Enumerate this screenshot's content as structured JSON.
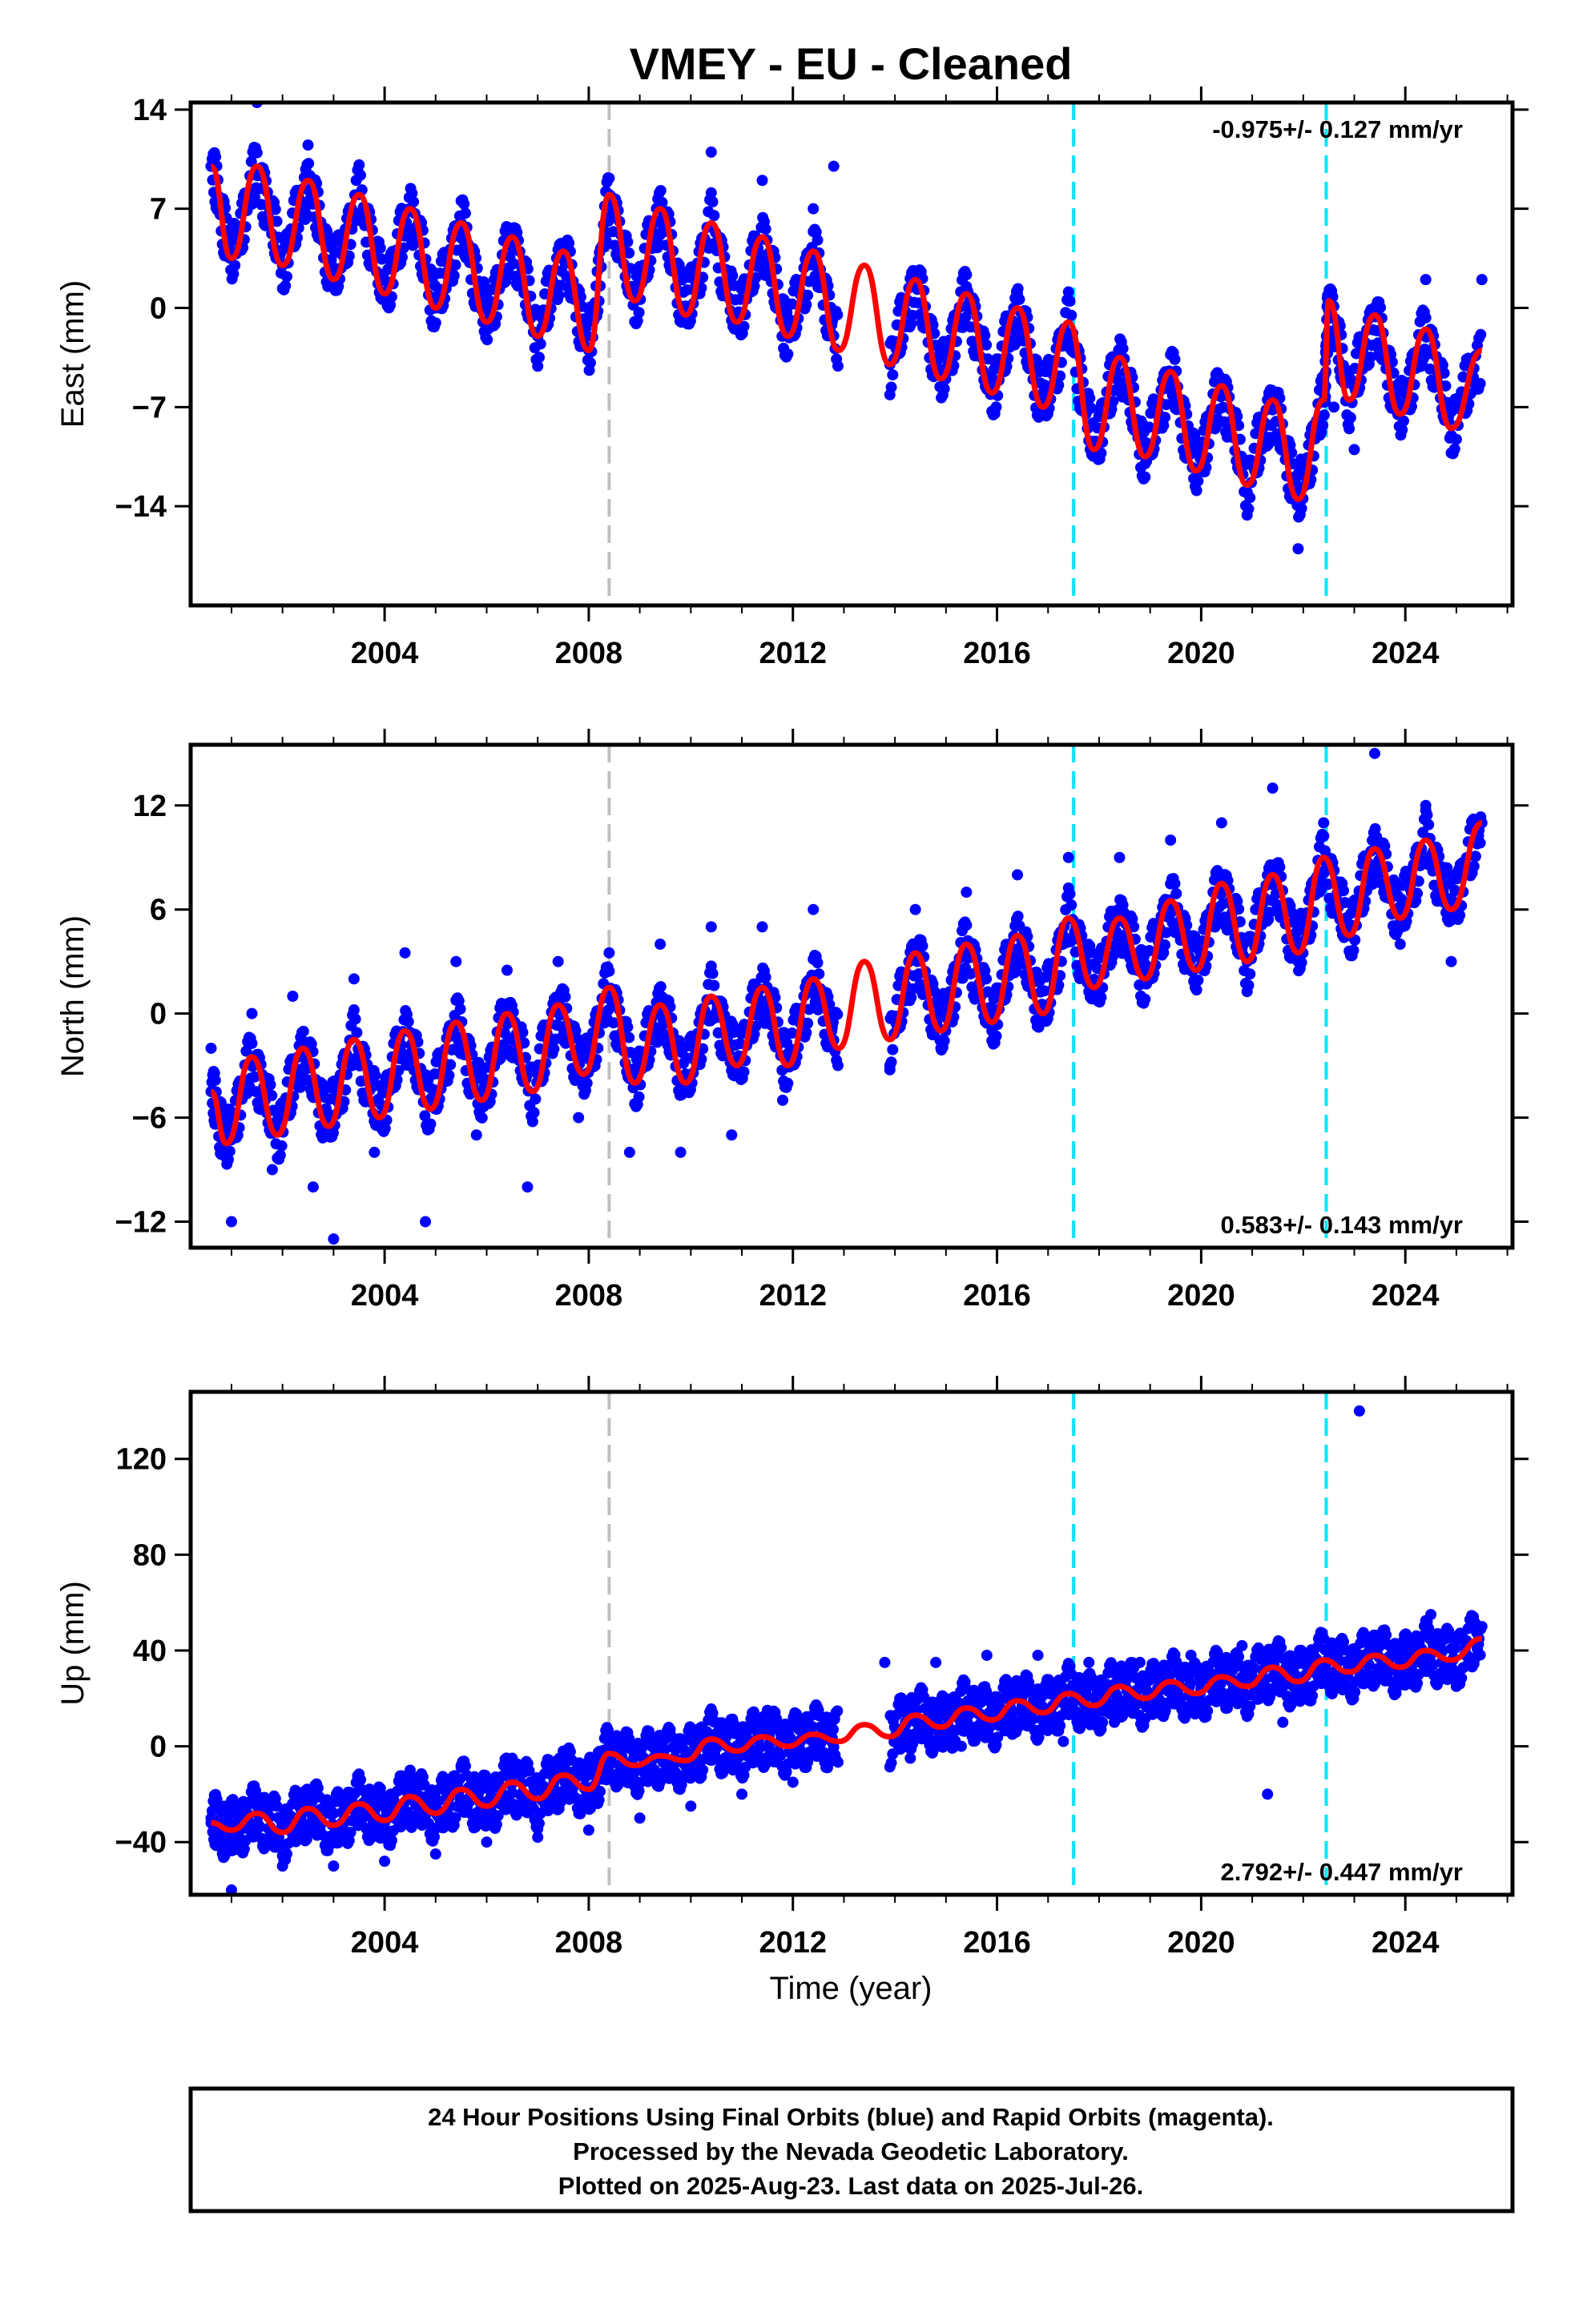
{
  "chart_data": {
    "title": "VMEY  - EU - Cleaned",
    "xlabel": "Time (year)",
    "x_range": [
      2000.2,
      2026.1
    ],
    "x_ticks": [
      2004,
      2008,
      2012,
      2016,
      2020,
      2024
    ],
    "vertical_lines": [
      {
        "x": 2008.4,
        "color": "#c0c0c0"
      },
      {
        "x": 2017.5,
        "color": "#00e5ff"
      },
      {
        "x": 2022.45,
        "color": "#00e5ff"
      }
    ],
    "colors": {
      "points": "#0000ff",
      "model": "#ff0000",
      "frame": "#000000"
    },
    "panels": [
      {
        "type": "scatter",
        "component": "east",
        "ylabel": "East (mm)",
        "ylim": [
          -21,
          14.5
        ],
        "yticks": [
          14,
          7,
          0,
          -7,
          -14
        ],
        "rate_label": "-0.975+/- 0.127 mm/yr",
        "rate_position": "top-right",
        "series": [
          {
            "name": "points",
            "x": [
              2000.6,
              2001.0,
              2001.5,
              2002.0,
              2002.5,
              2003.0,
              2003.5,
              2004.0,
              2004.5,
              2005.0,
              2005.5,
              2006.0,
              2006.5,
              2007.0,
              2007.5,
              2008.0,
              2008.4,
              2008.9,
              2009.4,
              2009.9,
              2010.4,
              2010.9,
              2011.4,
              2011.9,
              2012.4,
              2012.8,
              2013.9,
              2014.4,
              2014.9,
              2015.4,
              2015.9,
              2016.4,
              2016.9,
              2017.4,
              2017.9,
              2018.4,
              2018.9,
              2019.4,
              2019.9,
              2020.4,
              2020.9,
              2021.4,
              2021.9,
              2022.2,
              2022.6,
              2023.0,
              2023.4,
              2023.9,
              2024.4,
              2024.9,
              2025.5
            ],
            "y": [
              10,
              4,
              14.5,
              3,
              11.5,
              2.5,
              8,
              1,
              7,
              0,
              6,
              -1,
              5,
              -2,
              4,
              -3,
              8,
              1,
              7,
              -0.5,
              11,
              -1.5,
              9,
              -2,
              7,
              10,
              -4,
              2,
              -3.5,
              1.5,
              -5,
              1,
              -6,
              0.5,
              -10,
              -3,
              -11,
              -5,
              -12,
              -5,
              -13,
              -7,
              -17,
              -9,
              -7,
              -10,
              0,
              -7,
              2,
              -9,
              2
            ]
          },
          {
            "name": "model",
            "x": [
              2000.6,
              2001.0,
              2001.5,
              2002.0,
              2002.5,
              2003.0,
              2003.5,
              2004.0,
              2004.5,
              2005.0,
              2005.5,
              2006.0,
              2006.5,
              2007.0,
              2007.5,
              2008.0,
              2008.4,
              2008.9,
              2009.4,
              2009.9,
              2010.4,
              2010.9,
              2011.4,
              2011.9,
              2012.4,
              2012.9,
              2013.4,
              2013.9,
              2014.4,
              2014.9,
              2015.4,
              2015.9,
              2016.4,
              2016.9,
              2017.4,
              2017.9,
              2018.4,
              2018.9,
              2019.4,
              2019.9,
              2020.4,
              2020.9,
              2021.4,
              2021.9,
              2022.4,
              2022.5,
              2022.9,
              2023.4,
              2023.9,
              2024.4,
              2024.9,
              2025.5
            ],
            "y": [
              10,
              3.5,
              10,
              3,
              9,
              2,
              8,
              1,
              7,
              0,
              6,
              -1,
              5,
              -2,
              4,
              -3,
              8,
              0.5,
              7,
              -0.5,
              6,
              -1,
              5,
              -2,
              4,
              -3,
              3,
              -4,
              2,
              -5,
              1,
              -6,
              0,
              -7,
              -1,
              -10,
              -3.5,
              -10.5,
              -4.5,
              -11.5,
              -5.5,
              -12.5,
              -6.5,
              -13.5,
              -6.5,
              0.5,
              -6.5,
              -0.5,
              -7.5,
              -1.5,
              -8.5,
              -3
            ]
          }
        ]
      },
      {
        "type": "scatter",
        "component": "north",
        "ylabel": "North (mm)",
        "ylim": [
          -13.5,
          15.5
        ],
        "yticks": [
          12,
          6,
          0,
          -6,
          -12
        ],
        "rate_label": "0.583+/- 0.143 mm/yr",
        "rate_position": "bottom-right",
        "series": [
          {
            "name": "points",
            "x": [
              2000.6,
              2001.0,
              2001.4,
              2001.8,
              2002.2,
              2002.6,
              2003.0,
              2003.4,
              2003.8,
              2004.4,
              2004.8,
              2005.4,
              2005.8,
              2006.4,
              2006.8,
              2007.4,
              2007.8,
              2008.4,
              2008.8,
              2009.4,
              2009.8,
              2010.4,
              2010.8,
              2011.4,
              2011.8,
              2012.4,
              2013.9,
              2014.4,
              2014.9,
              2015.4,
              2015.9,
              2016.4,
              2016.9,
              2017.4,
              2017.9,
              2018.4,
              2018.9,
              2019.4,
              2019.9,
              2020.4,
              2020.9,
              2021.4,
              2021.9,
              2022.4,
              2022.9,
              2023.4,
              2023.9,
              2024.4,
              2024.9,
              2025.5
            ],
            "y": [
              -2,
              -12,
              0,
              -9,
              1,
              -10,
              -13,
              2,
              -8,
              3.5,
              -12,
              3,
              -7,
              2.5,
              -10,
              3,
              -6,
              3.5,
              -8,
              4,
              -8,
              5,
              -7,
              5,
              -5,
              6,
              -3,
              6,
              -2,
              7,
              -1,
              8,
              0,
              9,
              1,
              9,
              2,
              10,
              4,
              11,
              3,
              13,
              3,
              11,
              5,
              15,
              4,
              12,
              3,
              11
            ]
          },
          {
            "name": "model",
            "x": [
              2000.6,
              2000.9,
              2001.4,
              2001.9,
              2002.4,
              2002.9,
              2003.4,
              2003.9,
              2004.4,
              2004.9,
              2005.4,
              2005.9,
              2006.4,
              2006.9,
              2007.4,
              2007.9,
              2008.4,
              2008.9,
              2009.4,
              2009.9,
              2010.4,
              2010.9,
              2011.4,
              2011.9,
              2012.4,
              2012.9,
              2013.4,
              2013.9,
              2014.4,
              2014.9,
              2015.4,
              2015.9,
              2016.4,
              2016.9,
              2017.4,
              2017.9,
              2018.4,
              2018.9,
              2019.4,
              2019.9,
              2020.4,
              2020.9,
              2021.4,
              2021.9,
              2022.4,
              2022.9,
              2023.4,
              2023.9,
              2024.4,
              2024.9,
              2025.5
            ],
            "y": [
              -4.5,
              -7.5,
              -2.5,
              -7,
              -2,
              -6.5,
              -1.5,
              -6,
              -1,
              -5.5,
              -0.5,
              -5,
              0,
              -4.5,
              0.5,
              -3.5,
              1.5,
              -4,
              0.5,
              -4,
              1,
              -3,
              1.5,
              -3,
              2,
              -2,
              3,
              -1.5,
              3.5,
              -1,
              4,
              -0.5,
              4.5,
              0,
              5.5,
              1.5,
              5.5,
              2,
              6.5,
              2.5,
              7.5,
              3,
              8,
              3.5,
              9,
              4.5,
              9.5,
              5.5,
              10,
              6,
              11
            ]
          }
        ]
      },
      {
        "type": "scatter",
        "component": "up",
        "ylabel": "Up (mm)",
        "ylim": [
          -62,
          148
        ],
        "yticks": [
          120,
          80,
          40,
          0,
          -40
        ],
        "rate_label": "2.792+/- 0.447 mm/yr",
        "rate_position": "bottom-right",
        "series": [
          {
            "name": "points",
            "x": [
              2000.6,
              2001.0,
              2001.5,
              2002.0,
              2002.5,
              2003.0,
              2003.5,
              2004.0,
              2004.5,
              2005.0,
              2005.5,
              2006.0,
              2006.5,
              2007.0,
              2007.5,
              2008.0,
              2008.4,
              2009.0,
              2009.5,
              2010.0,
              2010.5,
              2011.0,
              2011.5,
              2012.0,
              2012.5,
              2013.8,
              2014.3,
              2014.8,
              2015.3,
              2015.8,
              2016.3,
              2016.8,
              2017.3,
              2017.8,
              2018.3,
              2018.8,
              2019.3,
              2019.8,
              2020.3,
              2020.8,
              2021.3,
              2021.6,
              2022.3,
              2022.8,
              2023.1,
              2023.5,
              2024.0,
              2024.5,
              2025.0,
              2025.5
            ],
            "y": [
              -30,
              -60,
              -25,
              -50,
              -20,
              -50,
              -15,
              -48,
              -10,
              -45,
              -8,
              -40,
              -5,
              -38,
              -2,
              -35,
              0,
              -30,
              5,
              -25,
              10,
              -20,
              15,
              -15,
              15,
              35,
              -5,
              35,
              0,
              38,
              5,
              38,
              2,
              35,
              10,
              35,
              15,
              38,
              20,
              42,
              -20,
              10,
              45,
              30,
              140,
              45,
              35,
              55,
              25,
              50
            ]
          },
          {
            "name": "model",
            "x": [
              2000.6,
              2001.0,
              2001.5,
              2002.0,
              2002.5,
              2003.0,
              2003.5,
              2004.0,
              2004.5,
              2005.0,
              2005.5,
              2006.0,
              2006.5,
              2007.0,
              2007.5,
              2008.0,
              2008.4,
              2008.9,
              2009.4,
              2009.9,
              2010.4,
              2010.9,
              2011.4,
              2011.9,
              2012.4,
              2012.9,
              2013.4,
              2013.9,
              2014.4,
              2014.9,
              2015.4,
              2015.9,
              2016.4,
              2016.9,
              2017.4,
              2017.9,
              2018.4,
              2018.9,
              2019.4,
              2019.9,
              2020.4,
              2020.9,
              2021.4,
              2021.9,
              2022.4,
              2022.9,
              2023.4,
              2023.9,
              2024.4,
              2024.9,
              2025.5
            ],
            "y": [
              -32,
              -35,
              -28,
              -36,
              -26,
              -33,
              -24,
              -31,
              -21,
              -28,
              -18,
              -25,
              -15,
              -22,
              -12,
              -18,
              -3,
              -8,
              -4,
              -6,
              3,
              -2,
              4,
              0,
              5,
              2,
              9,
              4,
              13,
              8,
              16,
              11,
              19,
              14,
              22,
              17,
              25,
              20,
              27,
              22,
              29,
              25,
              33,
              27,
              36,
              31,
              38,
              33,
              40,
              36,
              45
            ]
          }
        ]
      }
    ]
  },
  "footer": {
    "line1": "24 Hour Positions Using Final Orbits (blue) and Rapid Orbits (magenta).",
    "line2": "Processed by the Nevada Geodetic Laboratory.",
    "line3": "Plotted on 2025-Aug-23. Last data on 2025-Jul-26."
  }
}
